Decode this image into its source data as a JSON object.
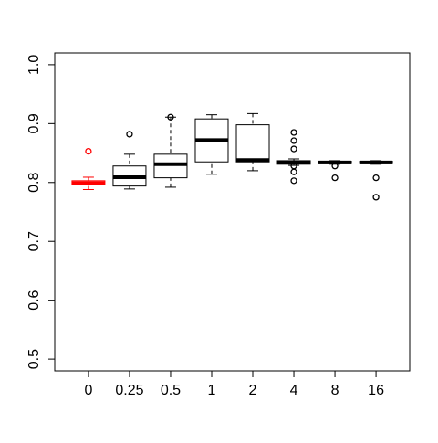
{
  "chart_data": {
    "type": "box",
    "categories": [
      "0",
      "0.25",
      "0.5",
      "1",
      "2",
      "4",
      "8",
      "16"
    ],
    "min": [
      0.788,
      0.789,
      0.792,
      0.814,
      0.82,
      0.829,
      0.831,
      0.831
    ],
    "q1": [
      0.796,
      0.794,
      0.808,
      0.835,
      0.835,
      0.831,
      0.832,
      0.832
    ],
    "median": [
      0.799,
      0.809,
      0.831,
      0.872,
      0.838,
      0.834,
      0.834,
      0.834
    ],
    "q3": [
      0.803,
      0.828,
      0.848,
      0.908,
      0.898,
      0.837,
      0.836,
      0.836
    ],
    "max": [
      0.809,
      0.848,
      0.911,
      0.915,
      0.917,
      0.84,
      0.837,
      0.837
    ],
    "outliers": [
      [
        0.853
      ],
      [
        0.882
      ],
      [
        0.911
      ],
      [],
      [],
      [
        0.885,
        0.871,
        0.857,
        0.828,
        0.818,
        0.803
      ],
      [
        0.828,
        0.808
      ],
      [
        0.808,
        0.775
      ]
    ],
    "colors": [
      "#ff0000",
      "#000000",
      "#000000",
      "#000000",
      "#000000",
      "#000000",
      "#000000",
      "#000000"
    ],
    "ylim": [
      0.48,
      1.02
    ],
    "yticks": [
      0.5,
      0.6,
      0.7,
      0.8,
      0.9,
      {
        "value": 1,
        "label": "1.0"
      }
    ]
  }
}
